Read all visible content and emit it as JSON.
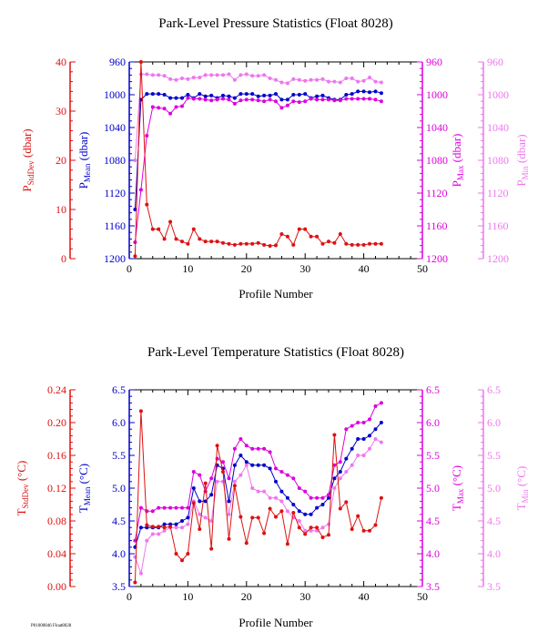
{
  "footer": "P01000846 Float8028",
  "chart_data": [
    {
      "type": "line",
      "title": "Park-Level Pressure Statistics (Float 8028)",
      "xlabel": "Profile Number",
      "xlim": [
        0,
        50
      ],
      "xticks": [
        0,
        10,
        20,
        30,
        40,
        50
      ],
      "axes": [
        {
          "id": "std",
          "label_main": "P",
          "label_sub": "StdDev",
          "label_unit": "(dbar)",
          "color": "#dd1111",
          "lim": [
            0,
            40
          ],
          "ticks": [
            0,
            10,
            20,
            30,
            40
          ],
          "tick_labels": [
            "0",
            "10",
            "20",
            "30",
            "40"
          ],
          "side": "left",
          "reversed": false
        },
        {
          "id": "mean",
          "label_main": "P",
          "label_sub": "Mean",
          "label_unit": "(dbar)",
          "color": "#0000cc",
          "lim": [
            960,
            1200
          ],
          "ticks": [
            960,
            1000,
            1040,
            1080,
            1120,
            1160,
            1200
          ],
          "tick_labels": [
            "960",
            "1000",
            "1040",
            "1080",
            "1120",
            "1160",
            "1200"
          ],
          "side": "left",
          "reversed": true
        },
        {
          "id": "max",
          "label_main": "P",
          "label_sub": "Max",
          "label_unit": "(dbar)",
          "color": "#dd00dd",
          "lim": [
            960,
            1200
          ],
          "ticks": [
            960,
            1000,
            1040,
            1080,
            1120,
            1160,
            1200
          ],
          "tick_labels": [
            "960",
            "1000",
            "1040",
            "1080",
            "1120",
            "1160",
            "1200"
          ],
          "side": "right",
          "reversed": true
        },
        {
          "id": "min",
          "label_main": "P",
          "label_sub": "Min",
          "label_unit": "(dbar)",
          "color": "#ee77ee",
          "lim": [
            960,
            1200
          ],
          "ticks": [
            960,
            1000,
            1040,
            1080,
            1120,
            1160,
            1200
          ],
          "tick_labels": [
            "960",
            "1000",
            "1040",
            "1080",
            "1120",
            "1160",
            "1200"
          ],
          "side": "right",
          "reversed": true
        }
      ],
      "series": [
        {
          "axis": "min",
          "values": [
            1080,
            975,
            975,
            976,
            976,
            977,
            981,
            982,
            980,
            981,
            979,
            979,
            976,
            976,
            976,
            976,
            975,
            982,
            976,
            975,
            977,
            977,
            976,
            980,
            982,
            985,
            986,
            981,
            982,
            983,
            982,
            982,
            981,
            984,
            984,
            985,
            980,
            980,
            984,
            983,
            979,
            984,
            985
          ]
        },
        {
          "axis": "mean",
          "values": [
            1140,
            1006,
            999,
            999,
            999,
            1000,
            1004,
            1004,
            1004,
            1000,
            1004,
            999,
            1002,
            1001,
            1004,
            1001,
            1002,
            1004,
            999,
            999,
            999,
            1002,
            1001,
            1001,
            999,
            1006,
            1006,
            1000,
            1000,
            999,
            1004,
            1002,
            1001,
            1004,
            1006,
            1006,
            1000,
            999,
            996,
            996,
            997,
            996,
            998
          ]
        },
        {
          "axis": "max",
          "values": [
            1180,
            1116,
            1050,
            1015,
            1016,
            1017,
            1023,
            1015,
            1014,
            1004,
            1005,
            1005,
            1006,
            1007,
            1006,
            1005,
            1006,
            1011,
            1007,
            1006,
            1006,
            1007,
            1008,
            1006,
            1008,
            1016,
            1013,
            1008,
            1009,
            1008,
            1005,
            1006,
            1006,
            1006,
            1007,
            1007,
            1005,
            1005,
            1005,
            1005,
            1005,
            1006,
            1008
          ]
        },
        {
          "axis": "std",
          "values": [
            0.5,
            40,
            11,
            6,
            6,
            4,
            7.5,
            4,
            3.5,
            3,
            6,
            4,
            3.5,
            3.5,
            3.5,
            3.2,
            3,
            2.8,
            3,
            3,
            3,
            3.2,
            2.8,
            2.6,
            2.7,
            5,
            4.5,
            2.8,
            6,
            6,
            4.5,
            4.5,
            3,
            3.5,
            3.2,
            5,
            3,
            2.8,
            2.8,
            2.8,
            3,
            3,
            3
          ]
        }
      ]
    },
    {
      "type": "line",
      "title": "Park-Level Temperature Statistics (Float 8028)",
      "xlabel": "Profile Number",
      "xlim": [
        0,
        50
      ],
      "xticks": [
        0,
        10,
        20,
        30,
        40,
        50
      ],
      "axes": [
        {
          "id": "std",
          "label_main": "T",
          "label_sub": "StdDev",
          "label_unit": "(°C)",
          "color": "#dd1111",
          "lim": [
            0,
            0.24
          ],
          "ticks": [
            0,
            0.04,
            0.08,
            0.12,
            0.16,
            0.2,
            0.24
          ],
          "tick_labels": [
            "0.00",
            "0.04",
            "0.08",
            "0.12",
            "0.16",
            "0.20",
            "0.24"
          ],
          "side": "left",
          "reversed": false
        },
        {
          "id": "mean",
          "label_main": "T",
          "label_sub": "Mean",
          "label_unit": "(°C)",
          "color": "#0000cc",
          "lim": [
            3.5,
            6.5
          ],
          "ticks": [
            3.5,
            4,
            4.5,
            5,
            5.5,
            6,
            6.5
          ],
          "tick_labels": [
            "3.5",
            "4.0",
            "4.5",
            "5.0",
            "5.5",
            "6.0",
            "6.5"
          ],
          "side": "left",
          "reversed": false
        },
        {
          "id": "max",
          "label_main": "T",
          "label_sub": "Max",
          "label_unit": "(°C)",
          "color": "#dd00dd",
          "lim": [
            3.5,
            6.5
          ],
          "ticks": [
            3.5,
            4,
            4.5,
            5,
            5.5,
            6,
            6.5
          ],
          "tick_labels": [
            "3.5",
            "4.0",
            "4.5",
            "5.0",
            "5.5",
            "6.0",
            "6.5"
          ],
          "side": "right",
          "reversed": false
        },
        {
          "id": "min",
          "label_main": "T",
          "label_sub": "Min",
          "label_unit": "(°C)",
          "color": "#ee77ee",
          "lim": [
            3.5,
            6.5
          ],
          "ticks": [
            3.5,
            4,
            4.5,
            5,
            5.5,
            6,
            6.5
          ],
          "tick_labels": [
            "3.5",
            "4.0",
            "4.5",
            "5.0",
            "5.5",
            "6.0",
            "6.5"
          ],
          "side": "right",
          "reversed": false
        }
      ],
      "series": [
        {
          "axis": "min",
          "values": [
            3.95,
            3.7,
            4.2,
            4.3,
            4.3,
            4.35,
            4.4,
            4.4,
            4.4,
            4.45,
            4.8,
            4.6,
            4.55,
            4.5,
            5.1,
            5.1,
            4.6,
            5.1,
            5.2,
            5.35,
            5.0,
            4.95,
            4.95,
            4.85,
            4.85,
            4.8,
            4.65,
            4.55,
            4.5,
            4.35,
            4.35,
            4.35,
            4.4,
            4.45,
            5.0,
            5.15,
            5.25,
            5.35,
            5.5,
            5.5,
            5.6,
            5.75,
            5.7
          ]
        },
        {
          "axis": "mean",
          "values": [
            4.1,
            4.4,
            4.4,
            4.4,
            4.4,
            4.45,
            4.45,
            4.45,
            4.5,
            4.55,
            5.0,
            4.8,
            4.8,
            4.9,
            5.35,
            5.3,
            4.8,
            5.35,
            5.5,
            5.4,
            5.35,
            5.35,
            5.35,
            5.3,
            5.1,
            4.95,
            4.85,
            4.75,
            4.65,
            4.6,
            4.6,
            4.7,
            4.75,
            4.85,
            5.15,
            5.25,
            5.45,
            5.6,
            5.75,
            5.75,
            5.8,
            5.9,
            6.0
          ]
        },
        {
          "axis": "max",
          "values": [
            4.2,
            4.7,
            4.65,
            4.65,
            4.7,
            4.7,
            4.7,
            4.7,
            4.7,
            4.7,
            5.25,
            5.2,
            4.95,
            5.15,
            5.45,
            5.4,
            5.15,
            5.6,
            5.75,
            5.65,
            5.6,
            5.6,
            5.6,
            5.55,
            5.3,
            5.25,
            5.2,
            5.15,
            5.0,
            4.95,
            4.85,
            4.85,
            4.85,
            4.9,
            5.35,
            5.4,
            5.9,
            5.95,
            6.0,
            6.0,
            6.05,
            6.25,
            6.3
          ]
        },
        {
          "axis": "std",
          "values": [
            0.005,
            0.214,
            0.075,
            0.073,
            0.073,
            0.072,
            0.073,
            0.04,
            0.032,
            0.04,
            0.102,
            0.07,
            0.126,
            0.046,
            0.172,
            0.14,
            0.058,
            0.123,
            0.085,
            0.053,
            0.084,
            0.084,
            0.065,
            0.095,
            0.085,
            0.092,
            0.052,
            0.09,
            0.072,
            0.064,
            0.072,
            0.072,
            0.06,
            0.063,
            0.185,
            0.095,
            0.103,
            0.07,
            0.086,
            0.068,
            0.068,
            0.075,
            0.108
          ]
        }
      ]
    }
  ]
}
